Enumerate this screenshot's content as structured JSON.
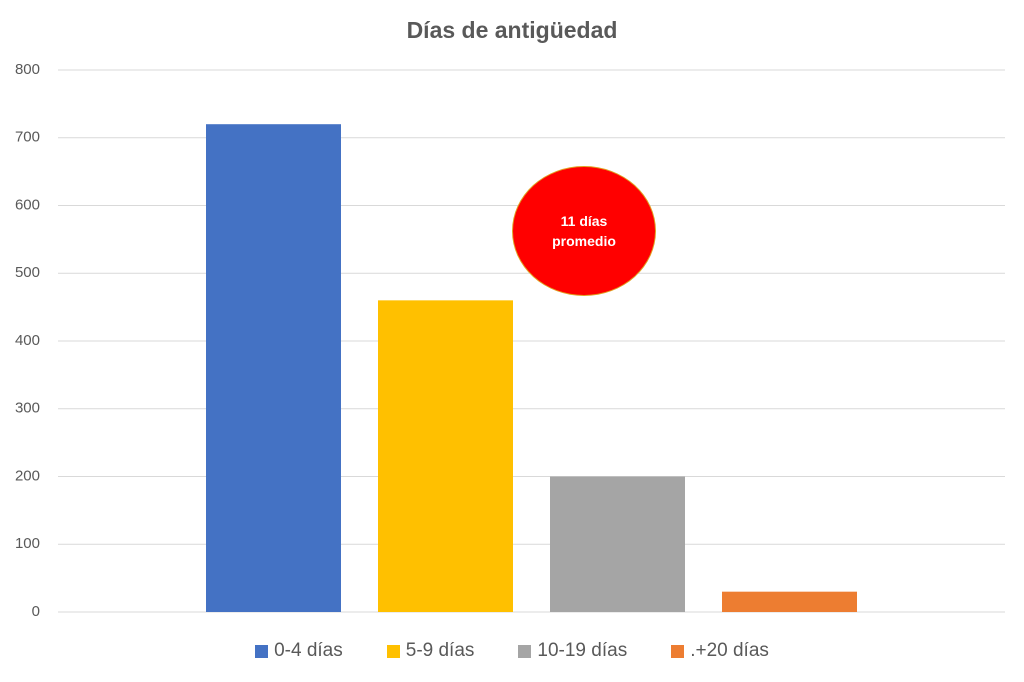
{
  "chart_data": {
    "type": "bar",
    "title": "Días de antigüedad",
    "categories": [
      null
    ],
    "series": [
      {
        "name": "0-4 días",
        "color": "#4472c4",
        "values": [
          720
        ]
      },
      {
        "name": "5-9 días",
        "color": "#ffc000",
        "values": [
          460
        ]
      },
      {
        "name": "10-19 días",
        "color": "#a5a5a5",
        "values": [
          200
        ]
      },
      {
        "name": ".+20 días",
        "color": "#ed7d31",
        "values": [
          30
        ]
      }
    ],
    "ylim": [
      0,
      800
    ],
    "yticks": [
      0,
      100,
      200,
      300,
      400,
      500,
      600,
      700,
      800
    ],
    "grid": true,
    "legend": "bottom",
    "annotation": {
      "text": "11 días promedio",
      "color": "#ff0000"
    }
  }
}
